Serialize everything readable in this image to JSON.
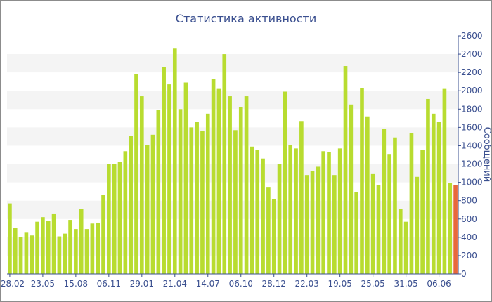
{
  "chart_data": {
    "type": "bar",
    "title": "Статистика активности",
    "ylabel": "Сообщений",
    "ylim": [
      0,
      2600
    ],
    "yticks": [
      0,
      200,
      400,
      600,
      800,
      1000,
      1200,
      1400,
      1600,
      1800,
      2000,
      2200,
      2400,
      2600
    ],
    "y_axis_position": "right",
    "grid": "alternating horizontal bands",
    "x_tick_labels": [
      {
        "index": 0,
        "label": "28.02"
      },
      {
        "index": 6,
        "label": "23.05"
      },
      {
        "index": 12,
        "label": "15.08"
      },
      {
        "index": 18,
        "label": "06.11"
      },
      {
        "index": 24,
        "label": "29.01"
      },
      {
        "index": 30,
        "label": "21.04"
      },
      {
        "index": 36,
        "label": "14.07"
      },
      {
        "index": 42,
        "label": "06.10"
      },
      {
        "index": 48,
        "label": "28.12"
      },
      {
        "index": 54,
        "label": "22.03"
      },
      {
        "index": 60,
        "label": "19.05"
      },
      {
        "index": 66,
        "label": "25.05"
      },
      {
        "index": 72,
        "label": "31.05"
      },
      {
        "index": 78,
        "label": "06.06"
      }
    ],
    "values": [
      770,
      500,
      400,
      450,
      420,
      570,
      620,
      580,
      660,
      410,
      440,
      590,
      490,
      710,
      490,
      550,
      560,
      860,
      1200,
      1200,
      1220,
      1340,
      1510,
      2180,
      1940,
      1410,
      1520,
      1790,
      2260,
      2070,
      2460,
      1800,
      2090,
      1600,
      1660,
      1560,
      1750,
      2130,
      2020,
      2400,
      1940,
      1570,
      1820,
      1940,
      1390,
      1350,
      1260,
      950,
      820,
      1200,
      1990,
      1410,
      1370,
      1670,
      1080,
      1120,
      1170,
      1340,
      1330,
      1080,
      1370,
      2270,
      1850,
      890,
      2030,
      1720,
      1090,
      970,
      1580,
      1310,
      1490,
      710,
      570,
      1540,
      1060,
      1350,
      1910,
      1750,
      1660,
      2020,
      990,
      970
    ],
    "bar_color": "#b8dc30",
    "highlight_color": "#e8683c",
    "highlight_index": 81,
    "band_color": "#f4f4f4",
    "axis_color": "#3a4f8f"
  }
}
